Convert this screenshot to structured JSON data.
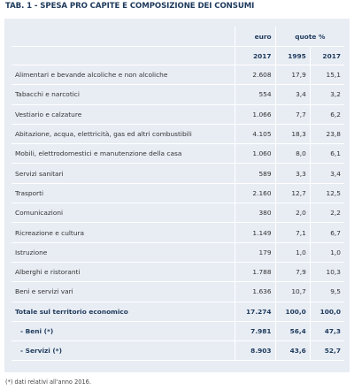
{
  "title": "TAB. 1 - SPESA PRO CAPITE E COMPOSIZIONE DEI CONSUMI",
  "table": {
    "header": {
      "euro": "euro",
      "quote": "quote %",
      "years": [
        "2017",
        "1995",
        "2017"
      ]
    },
    "rows": [
      [
        "Alimentari e bevande alcoliche e non alcoliche",
        "2.608",
        "17,9",
        "15,1"
      ],
      [
        "Tabacchi e narcotici",
        "554",
        "3,4",
        "3,2"
      ],
      [
        "Vestiario e calzature",
        "1.066",
        "7,7",
        "6,2"
      ],
      [
        "Abitazione, acqua, elettricità, gas ed altri combustibili",
        "4.105",
        "18,3",
        "23,8"
      ],
      [
        "Mobili, elettrodomestici e manutenzione della casa",
        "1.060",
        "8,0",
        "6,1"
      ],
      [
        "Servizi sanitari",
        "589",
        "3,3",
        "3,4"
      ],
      [
        "Trasporti",
        "2.160",
        "12,7",
        "12,5"
      ],
      [
        "Comunicazioni",
        "380",
        "2,0",
        "2,2"
      ],
      [
        "Ricreazione e cultura",
        "1.149",
        "7,1",
        "6,7"
      ],
      [
        "Istruzione",
        "179",
        "1,0",
        "1,0"
      ],
      [
        "Alberghi e ristoranti",
        "1.788",
        "7,9",
        "10,3"
      ],
      [
        "Beni e servizi vari",
        "1.636",
        "10,7",
        "9,5"
      ]
    ],
    "totals": [
      [
        "Totale sul territorio economico",
        "17.274",
        "100,0",
        "100,0"
      ],
      [
        "- Beni (*)",
        "7.981",
        "56,4",
        "47,3"
      ],
      [
        "- Servizi (*)",
        "8.903",
        "43,6",
        "52,7"
      ]
    ]
  },
  "footnote": "(*) dati relativi all'anno 2016."
}
